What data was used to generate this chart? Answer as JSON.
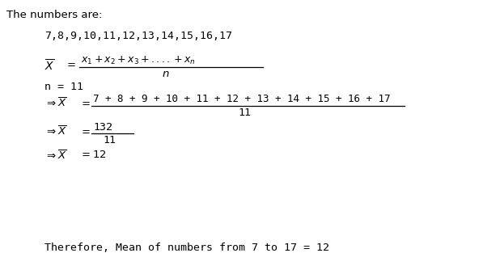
{
  "bg_color": "#ffffff",
  "text_color": "#000000",
  "font_family": "DejaVu Sans",
  "mono_family": "monospace",
  "line1": "The numbers are:",
  "line2": "7,8,9,10,11,12,13,14,15,16,17",
  "n_line": "n = 11",
  "step1_num": "7 + 8 + 9 + 10 + 11 + 12 + 13 + 14 + 15 + 16 + 17",
  "step1_den": "11",
  "step2_num": "132",
  "step2_den": "11",
  "conclusion": "Therefore, Mean of numbers from 7 to 17 = 12",
  "font_size": 9.5
}
